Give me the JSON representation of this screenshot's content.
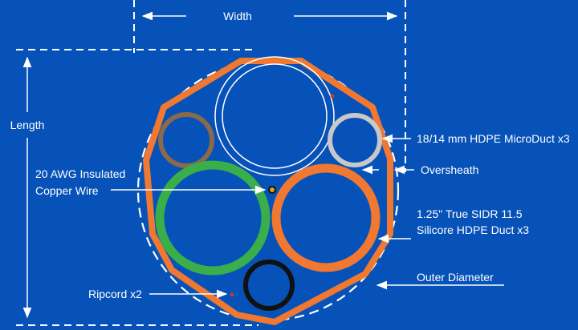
{
  "labels": {
    "width": "Width",
    "length": "Length",
    "microduct": "18/14 mm HDPE MicroDuct x3",
    "oversheath": "Oversheath",
    "copper_line1": "20 AWG Insulated",
    "copper_line2": "Copper Wire",
    "duct_line1": "1.25\" True SIDR 11.5",
    "duct_line2": "Silicore HDPE Duct x3",
    "outer_diameter": "Outer Diameter",
    "ripcord": "Ripcord x2"
  },
  "colors": {
    "background": "#0652b8",
    "sheath": "#f07830",
    "microduct_brown": "#8a6a4a",
    "microduct_gray": "#c8c8c8",
    "duct_green": "#3aae4a",
    "duct_orange": "#f07830",
    "duct_black": "#111111",
    "lines": "#ffffff"
  }
}
